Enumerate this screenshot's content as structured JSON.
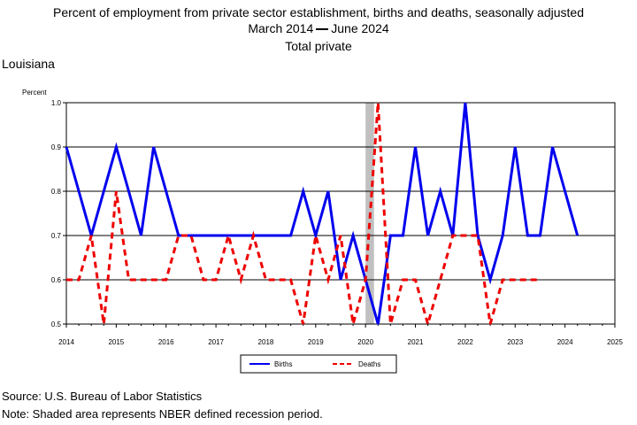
{
  "title": "Percent of employment from private sector establishment, births and deaths, seasonally adjusted",
  "subtitle_start": "March 2014",
  "subtitle_end": "June 2024",
  "subtitle2": "Total private",
  "region": "Louisiana",
  "source": "Source: U.S. Bureau of Labor Statistics",
  "note": "Note: Shaded area represents NBER defined recession period.",
  "chart_data": {
    "type": "line",
    "ylabel": "Percent",
    "ylim": [
      0.5,
      1.0
    ],
    "yticks": [
      "0.5",
      "0.6",
      "0.7",
      "0.8",
      "0.9",
      "1.0"
    ],
    "xlim": [
      2014,
      2025
    ],
    "xticks": [
      "2014",
      "2015",
      "2016",
      "2017",
      "2018",
      "2019",
      "2020",
      "2021",
      "2022",
      "2023",
      "2024",
      "2025"
    ],
    "grid": true,
    "legend_position": "bottom-center",
    "recession": {
      "start": 2020.0,
      "end": 2020.17,
      "color": "#c0c0c0"
    },
    "series": [
      {
        "name": "Births",
        "color": "#0000ee",
        "style": "solid",
        "x": [
          2014.0,
          2014.25,
          2014.5,
          2014.75,
          2015.0,
          2015.25,
          2015.5,
          2015.75,
          2016.0,
          2016.25,
          2016.5,
          2016.75,
          2017.0,
          2017.25,
          2017.5,
          2017.75,
          2018.0,
          2018.25,
          2018.5,
          2018.75,
          2019.0,
          2019.25,
          2019.5,
          2019.75,
          2020.0,
          2020.25,
          2020.5,
          2020.75,
          2021.0,
          2021.25,
          2021.5,
          2021.75,
          2022.0,
          2022.25,
          2022.5,
          2022.75,
          2023.0,
          2023.25,
          2023.5,
          2023.75,
          2024.0,
          2024.25
        ],
        "values": [
          0.9,
          0.8,
          0.7,
          0.8,
          0.9,
          0.8,
          0.7,
          0.9,
          0.8,
          0.7,
          0.7,
          0.7,
          0.7,
          0.7,
          0.7,
          0.7,
          0.7,
          0.7,
          0.7,
          0.8,
          0.7,
          0.8,
          0.6,
          0.7,
          0.6,
          0.5,
          0.7,
          0.7,
          0.9,
          0.7,
          0.8,
          0.7,
          1.0,
          0.7,
          0.6,
          0.7,
          0.9,
          0.7,
          0.7,
          0.9,
          0.8,
          0.7
        ]
      },
      {
        "name": "Deaths",
        "color": "#ee0000",
        "style": "dashed",
        "x": [
          2014.0,
          2014.25,
          2014.5,
          2014.75,
          2015.0,
          2015.25,
          2015.5,
          2015.75,
          2016.0,
          2016.25,
          2016.5,
          2016.75,
          2017.0,
          2017.25,
          2017.5,
          2017.75,
          2018.0,
          2018.25,
          2018.5,
          2018.75,
          2019.0,
          2019.25,
          2019.5,
          2019.75,
          2020.0,
          2020.25,
          2020.5,
          2020.75,
          2021.0,
          2021.25,
          2021.5,
          2021.75,
          2022.0,
          2022.25,
          2022.5,
          2022.75,
          2023.0,
          2023.25,
          2023.5
        ],
        "values": [
          0.6,
          0.6,
          0.7,
          0.5,
          0.8,
          0.6,
          0.6,
          0.6,
          0.6,
          0.7,
          0.7,
          0.6,
          0.6,
          0.7,
          0.6,
          0.7,
          0.6,
          0.6,
          0.6,
          0.5,
          0.7,
          0.6,
          0.7,
          0.5,
          0.6,
          1.0,
          0.5,
          0.6,
          0.6,
          0.5,
          0.6,
          0.7,
          0.7,
          0.7,
          0.5,
          0.6,
          0.6,
          0.6,
          0.6
        ]
      }
    ]
  }
}
